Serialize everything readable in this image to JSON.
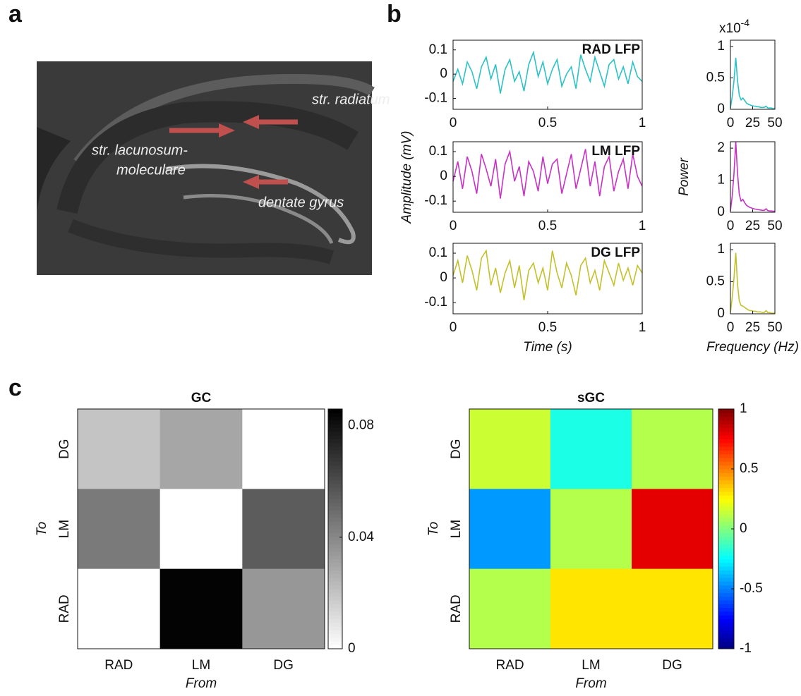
{
  "panels": {
    "a": "a",
    "b": "b",
    "c": "c"
  },
  "image": {
    "labels": {
      "radiatum": "str. radiatum",
      "lacunosum": [
        "str. lacunosum-",
        "moleculare"
      ],
      "dentate": "dentate gyrus"
    }
  },
  "chart_data": [
    {
      "type": "line",
      "title": "RAD LFP",
      "color": "#2cc2c6",
      "xlim": [
        0,
        1
      ],
      "ylim": [
        -0.145,
        0.14
      ],
      "xticks": [
        0,
        0.5,
        1
      ],
      "yticks": [
        -0.1,
        0,
        0.1
      ],
      "x": [
        0,
        0.025,
        0.05,
        0.075,
        0.1,
        0.125,
        0.15,
        0.175,
        0.2,
        0.225,
        0.25,
        0.275,
        0.3,
        0.325,
        0.35,
        0.375,
        0.4,
        0.425,
        0.45,
        0.475,
        0.5,
        0.525,
        0.55,
        0.575,
        0.6,
        0.625,
        0.65,
        0.675,
        0.7,
        0.725,
        0.75,
        0.775,
        0.8,
        0.825,
        0.85,
        0.875,
        0.9,
        0.925,
        0.95,
        0.975,
        1
      ],
      "values": [
        -0.03,
        0.02,
        -0.04,
        0.05,
        0.01,
        -0.06,
        0.03,
        0.07,
        -0.02,
        0.04,
        -0.08,
        0.02,
        0.06,
        -0.03,
        0.01,
        -0.07,
        0.04,
        0.09,
        -0.01,
        0.05,
        -0.04,
        0.02,
        0.06,
        -0.05,
        0.0,
        0.03,
        -0.06,
        0.08,
        0.02,
        -0.03,
        0.07,
        0.01,
        -0.05,
        0.04,
        0.06,
        -0.02,
        0.03,
        -0.04,
        0.05,
        -0.01,
        -0.03
      ]
    },
    {
      "type": "line",
      "title": "LM LFP",
      "color": "#c832c4",
      "xlim": [
        0,
        1
      ],
      "ylim": [
        -0.145,
        0.14
      ],
      "xticks": [
        0,
        0.5,
        1
      ],
      "yticks": [
        -0.1,
        0,
        0.1
      ],
      "ylabel": "Amplitude (mV)",
      "x": [
        0,
        0.025,
        0.05,
        0.075,
        0.1,
        0.125,
        0.15,
        0.175,
        0.2,
        0.225,
        0.25,
        0.275,
        0.3,
        0.325,
        0.35,
        0.375,
        0.4,
        0.425,
        0.45,
        0.475,
        0.5,
        0.525,
        0.55,
        0.575,
        0.6,
        0.625,
        0.65,
        0.675,
        0.7,
        0.725,
        0.75,
        0.775,
        0.8,
        0.825,
        0.85,
        0.875,
        0.9,
        0.925,
        0.95,
        0.975,
        1
      ],
      "values": [
        -0.02,
        0.06,
        -0.05,
        0.08,
        0.02,
        -0.07,
        0.09,
        0.03,
        -0.04,
        0.07,
        -0.09,
        0.05,
        0.1,
        -0.02,
        0.04,
        -0.08,
        0.06,
        0.02,
        -0.06,
        0.08,
        -0.03,
        0.05,
        0.07,
        -0.07,
        0.01,
        0.09,
        -0.05,
        0.03,
        0.11,
        -0.04,
        0.06,
        -0.08,
        0.04,
        0.08,
        -0.06,
        0.02,
        0.07,
        -0.05,
        0.09,
        0.0,
        -0.04
      ]
    },
    {
      "type": "line",
      "title": "DG LFP",
      "color": "#c4c02c",
      "xlim": [
        0,
        1
      ],
      "ylim": [
        -0.145,
        0.14
      ],
      "xticks": [
        0,
        0.5,
        1
      ],
      "yticks": [
        -0.1,
        0,
        0.1
      ],
      "xlabel": "Time (s)",
      "x": [
        0,
        0.025,
        0.05,
        0.075,
        0.1,
        0.125,
        0.15,
        0.175,
        0.2,
        0.225,
        0.25,
        0.275,
        0.3,
        0.325,
        0.35,
        0.375,
        0.4,
        0.425,
        0.45,
        0.475,
        0.5,
        0.525,
        0.55,
        0.575,
        0.6,
        0.625,
        0.65,
        0.675,
        0.7,
        0.725,
        0.75,
        0.775,
        0.8,
        0.825,
        0.85,
        0.875,
        0.9,
        0.925,
        0.95,
        0.975,
        1
      ],
      "values": [
        0.01,
        0.07,
        -0.02,
        0.09,
        0.03,
        -0.05,
        0.08,
        0.11,
        -0.03,
        0.04,
        -0.06,
        0.02,
        0.07,
        -0.04,
        0.05,
        -0.09,
        0.03,
        0.06,
        -0.02,
        0.04,
        -0.05,
        0.11,
        0.02,
        -0.04,
        0.06,
        0.01,
        -0.07,
        0.05,
        0.08,
        -0.02,
        0.03,
        -0.05,
        0.07,
        0.02,
        -0.03,
        0.06,
        -0.01,
        0.04,
        -0.03,
        0.05,
        0.02
      ]
    },
    {
      "type": "line",
      "color": "#2cc2c6",
      "xlim": [
        0,
        50
      ],
      "ylim": [
        0,
        1.1
      ],
      "xticks": [
        0,
        25,
        50
      ],
      "yticks": [
        0,
        0.5,
        1
      ],
      "y_multiplier": {
        "base": "x10",
        "exponent": "-4"
      },
      "x": [
        0,
        2,
        4,
        6,
        8,
        10,
        12,
        14,
        16,
        18,
        20,
        22,
        24,
        26,
        28,
        30,
        32,
        34,
        36,
        38,
        40,
        42,
        44,
        46,
        48,
        50
      ],
      "values": [
        0.02,
        0.2,
        0.45,
        0.82,
        0.45,
        0.22,
        0.15,
        0.18,
        0.14,
        0.1,
        0.08,
        0.07,
        0.06,
        0.05,
        0.05,
        0.04,
        0.04,
        0.03,
        0.03,
        0.03,
        0.05,
        0.02,
        0.02,
        0.02,
        0.01,
        0.01
      ]
    },
    {
      "type": "line",
      "color": "#c832c4",
      "xlim": [
        0,
        50
      ],
      "ylim": [
        0,
        2.2
      ],
      "xticks": [
        0,
        25,
        50
      ],
      "yticks": [
        0,
        1,
        2
      ],
      "ylabel": "Power",
      "x": [
        0,
        2,
        4,
        6,
        8,
        10,
        12,
        14,
        16,
        18,
        20,
        22,
        24,
        26,
        28,
        30,
        32,
        34,
        36,
        38,
        40,
        42,
        44,
        46,
        48,
        50
      ],
      "values": [
        0.04,
        0.5,
        1.2,
        2.2,
        1.2,
        0.55,
        0.35,
        0.4,
        0.3,
        0.22,
        0.18,
        0.15,
        0.13,
        0.11,
        0.1,
        0.09,
        0.08,
        0.07,
        0.06,
        0.06,
        0.11,
        0.05,
        0.04,
        0.04,
        0.03,
        0.03
      ]
    },
    {
      "type": "line",
      "color": "#c4c02c",
      "xlim": [
        0,
        50
      ],
      "ylim": [
        0,
        1.1
      ],
      "xticks": [
        0,
        25,
        50
      ],
      "yticks": [
        0,
        0.5,
        1
      ],
      "xlabel": "Frequency (Hz)",
      "x": [
        0,
        2,
        4,
        6,
        8,
        10,
        12,
        14,
        16,
        18,
        20,
        22,
        24,
        26,
        28,
        30,
        32,
        34,
        36,
        38,
        40,
        42,
        44,
        46,
        48,
        50
      ],
      "values": [
        0.02,
        0.25,
        0.55,
        0.95,
        0.45,
        0.2,
        0.13,
        0.12,
        0.1,
        0.08,
        0.06,
        0.05,
        0.05,
        0.04,
        0.04,
        0.03,
        0.03,
        0.03,
        0.02,
        0.02,
        0.05,
        0.02,
        0.02,
        0.01,
        0.01,
        0.01
      ]
    },
    {
      "type": "heatmap",
      "title": "GC",
      "x_categories": [
        "RAD",
        "LM",
        "DG"
      ],
      "y_categories": [
        "DG",
        "LM",
        "RAD"
      ],
      "xlabel": "From",
      "ylabel": "To",
      "values": [
        [
          0.02,
          0.03,
          0
        ],
        [
          0.045,
          0,
          0.055
        ],
        [
          0,
          0.085,
          0.035
        ]
      ],
      "colormap": "gray_r",
      "clim": [
        0,
        0.086
      ],
      "cticks": [
        0,
        0.04,
        0.08
      ]
    },
    {
      "type": "heatmap",
      "title": "sGC",
      "x_categories": [
        "RAD",
        "LM",
        "DG"
      ],
      "y_categories": [
        "DG",
        "LM",
        "RAD"
      ],
      "xlabel": "From",
      "ylabel": "To",
      "values": [
        [
          0.15,
          -0.2,
          0.1
        ],
        [
          -0.45,
          0.1,
          0.8
        ],
        [
          0.1,
          0.3,
          0.3
        ]
      ],
      "colormap": "jet",
      "clim": [
        -1,
        1
      ],
      "cticks": [
        -1,
        -0.5,
        0,
        0.5,
        1
      ]
    }
  ]
}
